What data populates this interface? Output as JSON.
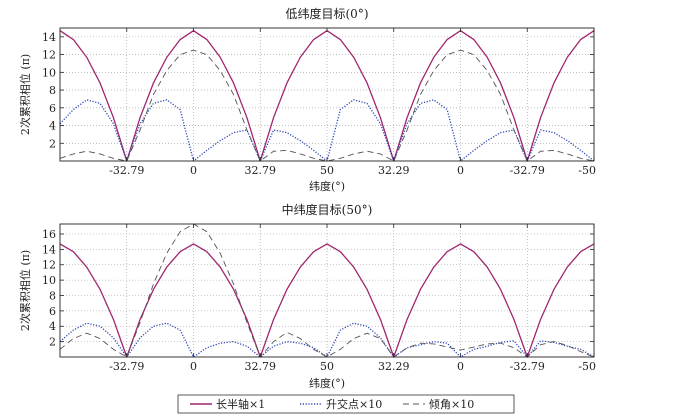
{
  "legend": [
    {
      "label": "长半轴×1",
      "color": "#a0256e",
      "dash": "solid"
    },
    {
      "label": "升交点×10",
      "color": "#2a45b5",
      "dash": "dotted"
    },
    {
      "label": "倾角×10",
      "color": "#555555",
      "dash": "dashed"
    }
  ],
  "chart_data": [
    {
      "type": "line",
      "title": "低纬度目标(0°)",
      "xlabel": "纬度(°)",
      "ylabel": "2次累积相位 (π)",
      "x_tick_labels": [
        "-32.79",
        "0",
        "32.79",
        "50",
        "32.29",
        "0",
        "-32.79",
        "-50"
      ],
      "x_tick_positions": [
        0.5,
        1,
        1.5,
        2,
        2.5,
        3,
        3.5,
        4
      ],
      "xlim": [
        0,
        4
      ],
      "ylim": [
        0,
        15
      ],
      "yticks": [
        2,
        4,
        6,
        8,
        10,
        12,
        14
      ],
      "grid": true,
      "series": [
        {
          "name": "长半轴×1",
          "color": "#a0256e",
          "x": [
            0,
            0.1,
            0.2,
            0.3,
            0.4,
            0.5,
            0.6,
            0.7,
            0.8,
            0.9,
            1.0,
            1.1,
            1.2,
            1.3,
            1.4,
            1.5,
            1.6,
            1.7,
            1.8,
            1.9,
            2.0,
            2.1,
            2.2,
            2.3,
            2.4,
            2.5,
            2.6,
            2.7,
            2.8,
            2.9,
            3.0,
            3.1,
            3.2,
            3.3,
            3.4,
            3.5,
            3.6,
            3.7,
            3.8,
            3.9,
            4.0
          ],
          "values": [
            14.7,
            13.7,
            11.7,
            8.8,
            4.9,
            0.0,
            4.9,
            8.8,
            11.7,
            13.7,
            14.7,
            13.7,
            11.7,
            8.8,
            4.9,
            0.0,
            4.9,
            8.8,
            11.7,
            13.7,
            14.7,
            13.7,
            11.7,
            8.8,
            4.9,
            0.0,
            4.9,
            8.8,
            11.7,
            13.7,
            14.7,
            13.7,
            11.7,
            8.8,
            4.9,
            0.0,
            4.9,
            8.8,
            11.7,
            13.7,
            14.7
          ]
        },
        {
          "name": "升交点×10",
          "color": "#2a45b5",
          "x": [
            0,
            0.1,
            0.2,
            0.3,
            0.4,
            0.5,
            0.6,
            0.7,
            0.8,
            0.9,
            1.0,
            1.1,
            1.2,
            1.3,
            1.4,
            1.5,
            1.6,
            1.7,
            1.8,
            1.9,
            2.0,
            2.1,
            2.2,
            2.3,
            2.4,
            2.5,
            2.6,
            2.7,
            2.8,
            2.9,
            3.0,
            3.1,
            3.2,
            3.3,
            3.4,
            3.5,
            3.6,
            3.7,
            3.8,
            3.9,
            4.0
          ],
          "values": [
            4.2,
            5.8,
            6.9,
            6.5,
            4.2,
            0.0,
            4.2,
            6.5,
            6.9,
            5.8,
            0.0,
            1.2,
            2.3,
            3.2,
            3.5,
            0.0,
            3.5,
            3.2,
            2.3,
            1.2,
            0.0,
            5.8,
            6.9,
            6.5,
            4.2,
            0.0,
            4.2,
            6.5,
            6.9,
            5.8,
            0.0,
            1.2,
            2.3,
            3.2,
            3.5,
            0.0,
            3.5,
            3.2,
            2.3,
            1.2,
            0.0
          ]
        },
        {
          "name": "倾角×10",
          "color": "#555555",
          "x": [
            0,
            0.1,
            0.2,
            0.3,
            0.4,
            0.5,
            0.6,
            0.7,
            0.8,
            0.9,
            1.0,
            1.1,
            1.2,
            1.3,
            1.4,
            1.5,
            1.6,
            1.7,
            1.8,
            1.9,
            2.0,
            2.1,
            2.2,
            2.3,
            2.4,
            2.5,
            2.6,
            2.7,
            2.8,
            2.9,
            3.0,
            3.1,
            3.2,
            3.3,
            3.4,
            3.5,
            3.6,
            3.7,
            3.8,
            3.9,
            4.0
          ],
          "values": [
            0.3,
            0.8,
            1.1,
            0.8,
            0.3,
            0.0,
            3.5,
            7.5,
            10.2,
            12.0,
            12.5,
            12.0,
            10.2,
            7.5,
            3.5,
            0.0,
            1.1,
            1.2,
            0.8,
            0.3,
            0.0,
            0.3,
            0.8,
            1.1,
            0.8,
            0.0,
            3.5,
            7.5,
            10.2,
            12.0,
            12.5,
            12.0,
            10.2,
            7.5,
            3.5,
            0.0,
            1.1,
            1.2,
            0.8,
            0.3,
            0.0
          ]
        }
      ]
    },
    {
      "type": "line",
      "title": "中纬度目标(50°)",
      "xlabel": "纬度(°)",
      "ylabel": "2次累积相位 (π)",
      "x_tick_labels": [
        "-32.79",
        "0",
        "32.79",
        "50",
        "32.29",
        "0",
        "-32.79",
        "-50"
      ],
      "x_tick_positions": [
        0.5,
        1,
        1.5,
        2,
        2.5,
        3,
        3.5,
        4
      ],
      "xlim": [
        0,
        4
      ],
      "ylim": [
        0,
        17.3
      ],
      "yticks": [
        2,
        4,
        6,
        8,
        10,
        12,
        14,
        16
      ],
      "grid": true,
      "series": [
        {
          "name": "长半轴×1",
          "color": "#a0256e",
          "x": [
            0,
            0.1,
            0.2,
            0.3,
            0.4,
            0.5,
            0.6,
            0.7,
            0.8,
            0.9,
            1.0,
            1.1,
            1.2,
            1.3,
            1.4,
            1.5,
            1.6,
            1.7,
            1.8,
            1.9,
            2.0,
            2.1,
            2.2,
            2.3,
            2.4,
            2.5,
            2.6,
            2.7,
            2.8,
            2.9,
            3.0,
            3.1,
            3.2,
            3.3,
            3.4,
            3.5,
            3.6,
            3.7,
            3.8,
            3.9,
            4.0
          ],
          "values": [
            14.7,
            13.7,
            11.7,
            8.8,
            4.9,
            0.0,
            4.9,
            8.8,
            11.7,
            13.7,
            14.7,
            13.7,
            11.7,
            8.8,
            4.9,
            0.0,
            4.9,
            8.8,
            11.7,
            13.7,
            14.7,
            13.7,
            11.7,
            8.8,
            4.9,
            0.0,
            4.9,
            8.8,
            11.7,
            13.7,
            14.7,
            13.7,
            11.7,
            8.8,
            4.9,
            0.0,
            4.9,
            8.8,
            11.7,
            13.7,
            14.7
          ]
        },
        {
          "name": "升交点×10",
          "color": "#2a45b5",
          "x": [
            0,
            0.1,
            0.2,
            0.3,
            0.4,
            0.5,
            0.6,
            0.7,
            0.8,
            0.9,
            1.0,
            1.1,
            1.2,
            1.3,
            1.4,
            1.5,
            1.6,
            1.7,
            1.8,
            1.9,
            2.0,
            2.1,
            2.2,
            2.3,
            2.4,
            2.5,
            2.6,
            2.7,
            2.8,
            2.9,
            3.0,
            3.1,
            3.2,
            3.3,
            3.4,
            3.5,
            3.6,
            3.7,
            3.8,
            3.9,
            4.0
          ],
          "values": [
            2.0,
            3.5,
            4.4,
            4.0,
            2.5,
            0.0,
            2.5,
            4.0,
            4.4,
            3.5,
            0.0,
            1.2,
            1.8,
            2.0,
            1.4,
            0.0,
            1.4,
            2.0,
            1.8,
            1.2,
            0.0,
            3.5,
            4.4,
            4.0,
            2.5,
            0.0,
            1.2,
            1.6,
            2.0,
            1.8,
            0.0,
            1.0,
            1.4,
            1.9,
            2.1,
            0.0,
            2.1,
            1.9,
            1.4,
            1.0,
            0.0
          ]
        },
        {
          "name": "倾角×10",
          "color": "#555555",
          "x": [
            0,
            0.1,
            0.2,
            0.3,
            0.4,
            0.5,
            0.6,
            0.7,
            0.8,
            0.9,
            1.0,
            1.1,
            1.2,
            1.3,
            1.4,
            1.5,
            1.6,
            1.7,
            1.8,
            1.9,
            2.0,
            2.1,
            2.2,
            2.3,
            2.4,
            2.5,
            2.6,
            2.7,
            2.8,
            2.9,
            3.0,
            3.1,
            3.2,
            3.3,
            3.4,
            3.5,
            3.6,
            3.7,
            3.8,
            3.9,
            4.0
          ],
          "values": [
            1.0,
            2.4,
            3.1,
            2.4,
            1.0,
            0.0,
            4.5,
            9.5,
            13.5,
            16.3,
            17.3,
            16.3,
            13.5,
            9.5,
            4.5,
            0.0,
            2.0,
            3.2,
            2.4,
            1.0,
            0.0,
            1.0,
            2.4,
            3.1,
            2.4,
            0.0,
            1.2,
            1.8,
            1.7,
            1.3,
            0.9,
            1.3,
            1.7,
            1.8,
            1.2,
            0.0,
            1.6,
            2.0,
            1.5,
            0.7,
            0.0
          ]
        }
      ]
    }
  ]
}
